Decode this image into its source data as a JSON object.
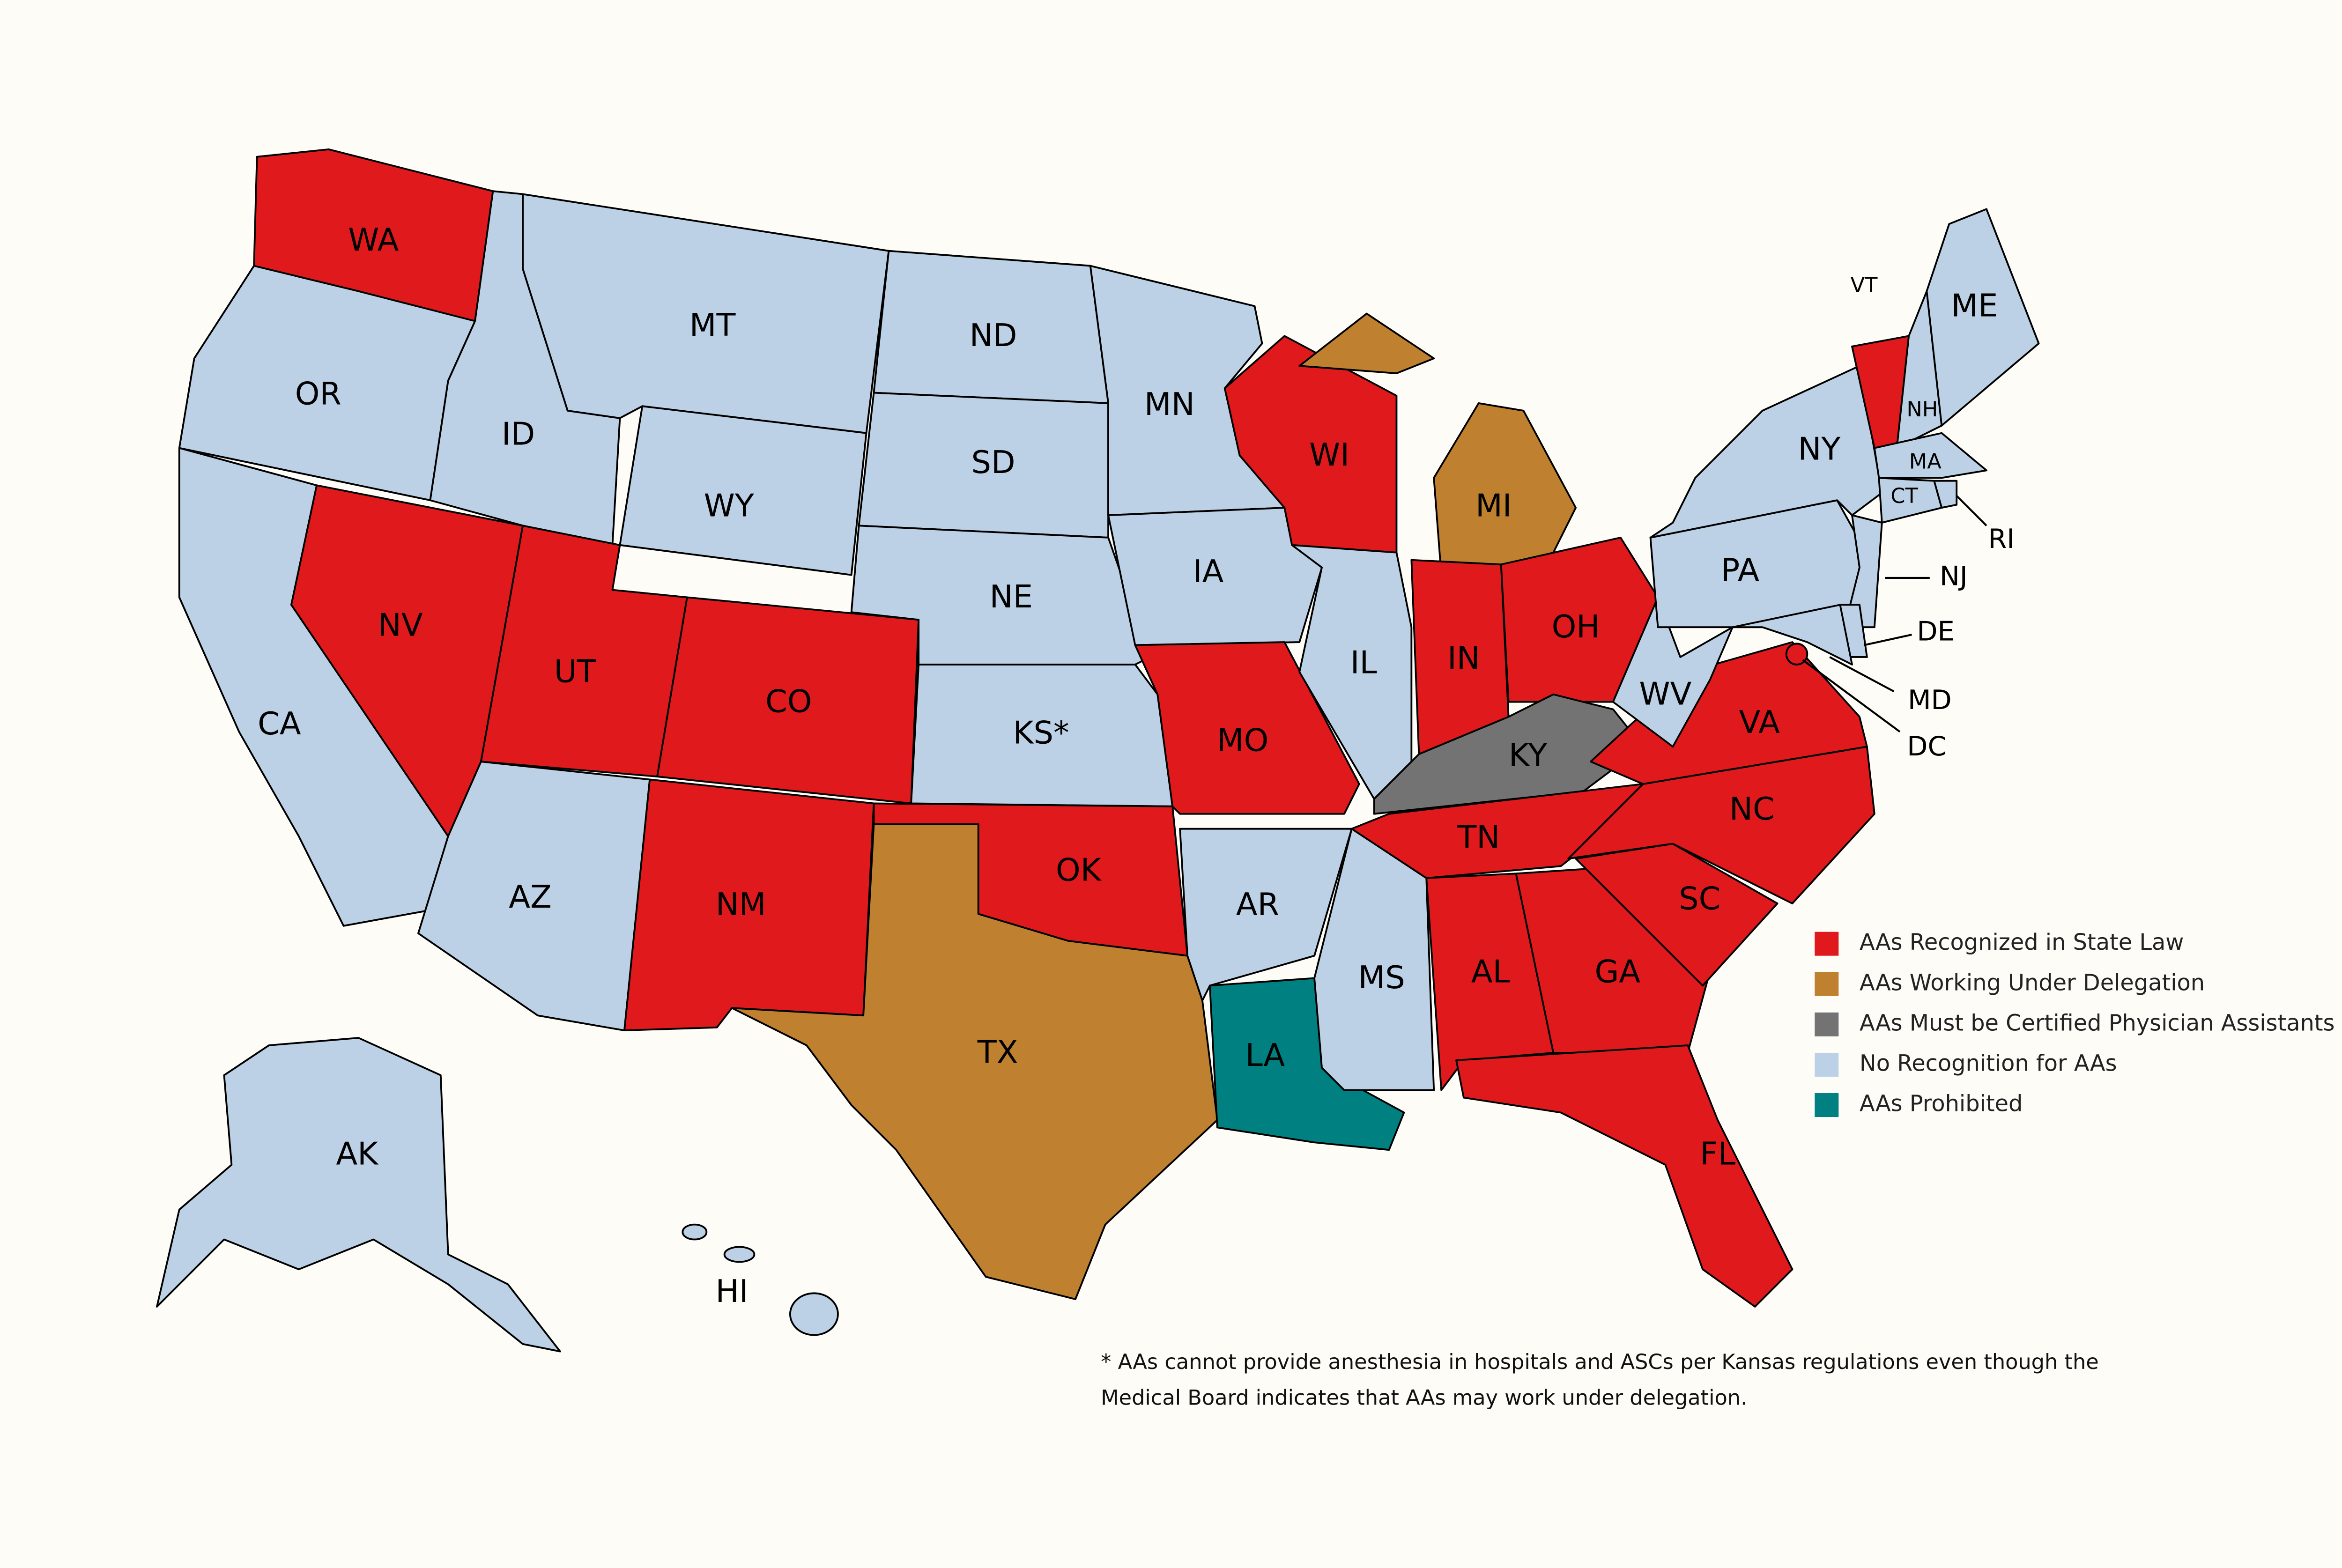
{
  "legend": [
    {
      "label": "AAs Recognized in State Law",
      "color": "#e0191c",
      "states": [
        "WA",
        "NV",
        "UT",
        "CO",
        "NM",
        "OK",
        "MO",
        "WI",
        "IN",
        "OH",
        "TN",
        "AL",
        "GA",
        "SC",
        "NC",
        "VA",
        "FL",
        "VT",
        "DC"
      ]
    },
    {
      "label": "AAs Working Under Delegation",
      "color": "#bf8130",
      "states": [
        "TX",
        "MI"
      ]
    },
    {
      "label": "AAs Must be Certified Physician Assistants",
      "color": "#737373",
      "states": [
        "KY"
      ]
    },
    {
      "label": "No Recognition for AAs",
      "color": "#bdd1e6",
      "states": [
        "OR",
        "CA",
        "ID",
        "MT",
        "WY",
        "AZ",
        "ND",
        "SD",
        "NE",
        "KS*",
        "MN",
        "IA",
        "AR",
        "MS",
        "IL",
        "WV",
        "PA",
        "NY",
        "NH",
        "ME",
        "MA",
        "CT",
        "RI",
        "NJ",
        "DE",
        "MD",
        "AK",
        "HI"
      ]
    },
    {
      "label": "AAs Prohibited",
      "color": "#008080",
      "states": [
        "LA"
      ]
    }
  ],
  "footnote": [
    "* AAs cannot provide anesthesia in hospitals and ASCs per Kansas regulations even though the",
    "Medical Board indicates that AAs may work under delegation."
  ]
}
